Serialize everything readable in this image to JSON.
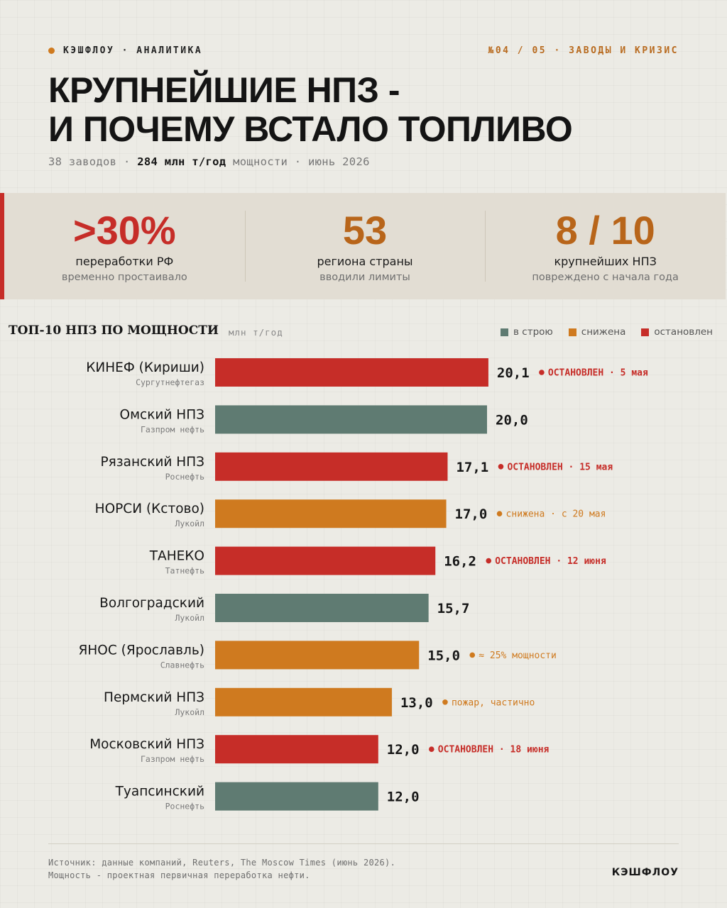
{
  "header": {
    "brand": "КЭШФЛОУ · АНАЛИТИКА",
    "issue": "№04 / 05 · ЗАВОДЫ И КРИЗИС",
    "title_line1": "КРУПНЕЙШИЕ НПЗ -",
    "title_line2": "И ПОЧЕМУ ВСТАЛО ТОПЛИВО",
    "subtitle_pre": "38 заводов · ",
    "subtitle_bold": "284 млн т/год",
    "subtitle_post": " мощности · июнь 2026"
  },
  "stats": [
    {
      "value": ">30%",
      "line1": "переработки РФ",
      "line2": "временно простаивало",
      "color": "#c62d28"
    },
    {
      "value": "53",
      "line1": "региона страны",
      "line2": "вводили лимиты",
      "color": "#b8651a"
    },
    {
      "value": "8 / 10",
      "line1": "крупнейших НПЗ",
      "line2": "повреждено с начала года",
      "color": "#b8651a"
    }
  ],
  "legend": [
    {
      "label": "в строю",
      "color": "#5f7b72"
    },
    {
      "label": "снижена",
      "color": "#cf7a1f"
    },
    {
      "label": "остановлен",
      "color": "#c62d28"
    }
  ],
  "chart_data": {
    "type": "bar",
    "orientation": "horizontal",
    "title": "ТОП-10 НПЗ ПО МОЩНОСТИ",
    "unit": "млн т/год",
    "colors": {
      "running": "#5f7b72",
      "reduced": "#cf7a1f",
      "stopped": "#c62d28"
    },
    "bars": [
      {
        "name": "КИНЕФ (Кириши)",
        "owner": "Сургутнефтегаз",
        "value": 20.1,
        "label": "20,1",
        "status": "stopped",
        "note_strong": "ОСТАНОВЛЕН",
        "note": " · 5 мая"
      },
      {
        "name": "Омский НПЗ",
        "owner": "Газпром нефть",
        "value": 20.0,
        "label": "20,0",
        "status": "running",
        "note_strong": "",
        "note": ""
      },
      {
        "name": "Рязанский НПЗ",
        "owner": "Роснефть",
        "value": 17.1,
        "label": "17,1",
        "status": "stopped",
        "note_strong": "ОСТАНОВЛЕН",
        "note": " · 15 мая"
      },
      {
        "name": "НОРСИ (Кстово)",
        "owner": "Лукойл",
        "value": 17.0,
        "label": "17,0",
        "status": "reduced",
        "note_strong": "",
        "note": "снижена · с 20 мая"
      },
      {
        "name": "ТАНЕКО",
        "owner": "Татнефть",
        "value": 16.2,
        "label": "16,2",
        "status": "stopped",
        "note_strong": "ОСТАНОВЛЕН",
        "note": " · 12 июня"
      },
      {
        "name": "Волгоградский",
        "owner": "Лукойл",
        "value": 15.7,
        "label": "15,7",
        "status": "running",
        "note_strong": "",
        "note": ""
      },
      {
        "name": "ЯНОС (Ярославль)",
        "owner": "Славнефть",
        "value": 15.0,
        "label": "15,0",
        "status": "reduced",
        "note_strong": "",
        "note": "≈ 25% мощности"
      },
      {
        "name": "Пермский НПЗ",
        "owner": "Лукойл",
        "value": 13.0,
        "label": "13,0",
        "status": "reduced",
        "note_strong": "",
        "note": "пожар, частично"
      },
      {
        "name": "Московский НПЗ",
        "owner": "Газпром нефть",
        "value": 12.0,
        "label": "12,0",
        "status": "stopped",
        "note_strong": "ОСТАНОВЛЕН",
        "note": " · 18 июня"
      },
      {
        "name": "Туапсинский",
        "owner": "Роснефть",
        "value": 12.0,
        "label": "12,0",
        "status": "running",
        "note_strong": "",
        "note": ""
      }
    ]
  },
  "footer": {
    "source_line1": "Источник: данные компаний, Reuters, The Moscow Times (июнь 2026).",
    "source_line2": "Мощность - проектная первичная переработка нефти.",
    "logo": "КЭШФЛОУ"
  }
}
